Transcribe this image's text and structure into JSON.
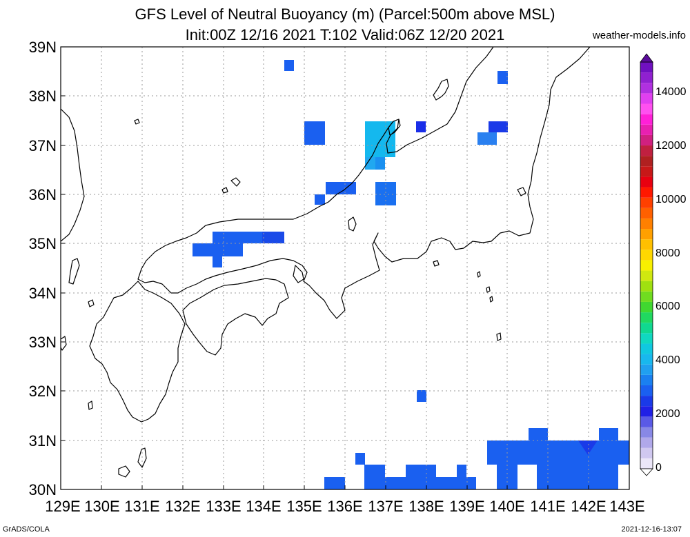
{
  "title_line1": "GFS Level of Neutral Buoyancy (m) (Parcel:500m above MSL)",
  "title_line2": "Init:00Z 12/16 2021 T:102 Valid:06Z 12/20 2021",
  "site": "weather-models.info",
  "footer_left": "GrADS/COLA",
  "footer_right": "2021-12-16-13:07",
  "lat_labels": [
    "39N",
    "38N",
    "37N",
    "36N",
    "35N",
    "34N",
    "33N",
    "32N",
    "31N",
    "30N"
  ],
  "lon_labels": [
    "129E",
    "130E",
    "131E",
    "132E",
    "133E",
    "134E",
    "135E",
    "136E",
    "137E",
    "138E",
    "139E",
    "140E",
    "141E",
    "142E",
    "143E"
  ],
  "colorbar_labels": [
    "14000",
    "12000",
    "10000",
    "8000",
    "6000",
    "4000",
    "2000",
    "0"
  ],
  "map_extent": {
    "lon": [
      129,
      143
    ],
    "lat": [
      30,
      39
    ]
  },
  "colors": {
    "main_blue": "#1a60f0",
    "dark_blue": "#1a2ee8",
    "cyan": "#14b8ee",
    "light_blue": "#24a0f0"
  }
}
